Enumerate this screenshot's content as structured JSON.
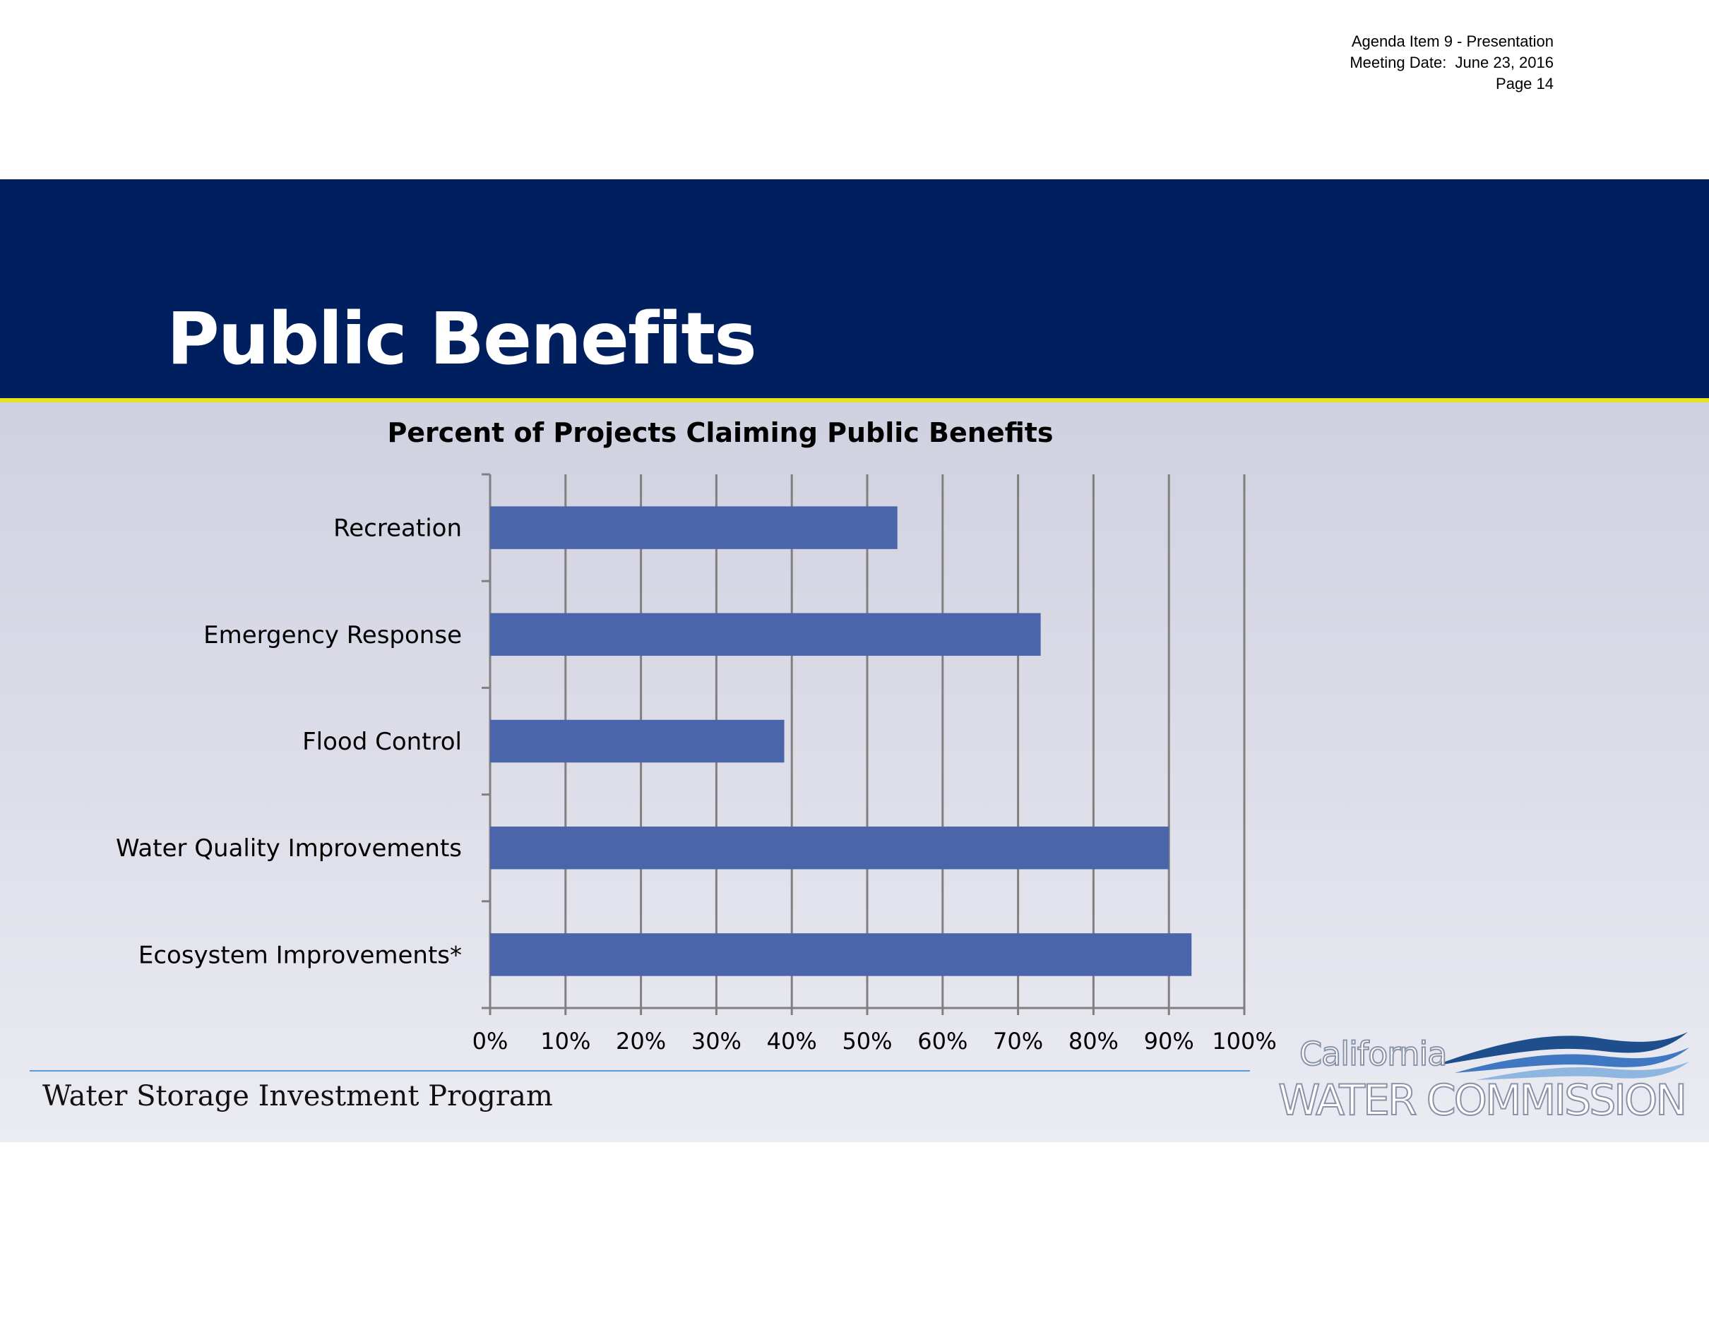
{
  "meta": {
    "agenda": "Agenda Item 9 - Presentation",
    "meeting_date": "Meeting Date:  June 23, 2016",
    "page": "Page 14"
  },
  "header": {
    "title": "Public Benefits"
  },
  "footer": {
    "program": "Water Storage Investment Program"
  },
  "logo": {
    "line1": "California",
    "line2": "WATER COMMISSION"
  },
  "colors": {
    "banner": "#001f5f",
    "accent_rule": "#e6e21c",
    "bar": "#4a65aa",
    "gridline": "#808080"
  },
  "chart_data": {
    "type": "bar",
    "orientation": "horizontal",
    "title": "Percent of Projects Claiming Public Benefits",
    "categories": [
      "Recreation",
      "Emergency Response",
      "Flood Control",
      "Water Quality Improvements",
      "Ecosystem Improvements*"
    ],
    "values": [
      54,
      73,
      39,
      90,
      93
    ],
    "xlim": [
      0,
      100
    ],
    "xticks": [
      "0%",
      "10%",
      "20%",
      "30%",
      "40%",
      "50%",
      "60%",
      "70%",
      "80%",
      "90%",
      "100%"
    ],
    "xlabel": "",
    "ylabel": "",
    "grid": true,
    "legend": "none"
  }
}
